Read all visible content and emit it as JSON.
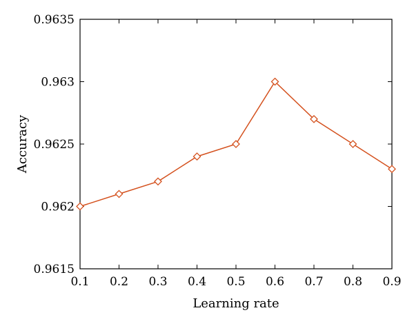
{
  "chart_data": {
    "type": "line",
    "xlabel": "Learning rate",
    "ylabel": "Accuracy",
    "xlim": [
      0.1,
      0.9
    ],
    "ylim": [
      0.9615,
      0.9635
    ],
    "xticks": [
      0.1,
      0.2,
      0.3,
      0.4,
      0.5,
      0.6,
      0.7,
      0.8,
      0.9
    ],
    "xtick_labels": [
      "0.1",
      "0.2",
      "0.3",
      "0.4",
      "0.5",
      "0.6",
      "0.7",
      "0.8",
      "0.9"
    ],
    "yticks": [
      0.9615,
      0.962,
      0.9625,
      0.963,
      0.9635
    ],
    "ytick_labels": [
      "0.9615",
      "0.962",
      "0.9625",
      "0.963",
      "0.9635"
    ],
    "grid": false,
    "legend": "none",
    "series": [
      {
        "color": "#d4511e",
        "marker": "diamond-open",
        "x": [
          0.1,
          0.2,
          0.3,
          0.4,
          0.5,
          0.6,
          0.7,
          0.8,
          0.9
        ],
        "y": [
          0.962,
          0.9621,
          0.9622,
          0.9624,
          0.9625,
          0.963,
          0.9627,
          0.9625,
          0.9623
        ]
      }
    ]
  }
}
